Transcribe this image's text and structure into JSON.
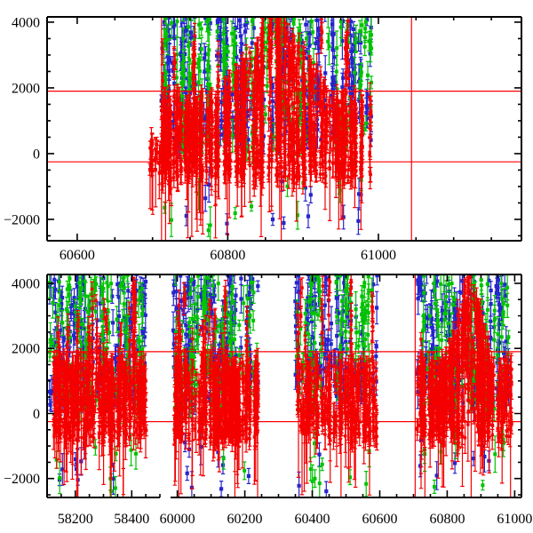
{
  "figure": {
    "background": "#ffffff",
    "frame_color": "#000000",
    "reference_line_color": "#ff0000"
  },
  "series": [
    {
      "name": "blue",
      "color": "#2525cd",
      "marker": "square",
      "marker_px": 4.2
    },
    {
      "name": "green",
      "color": "#00c300",
      "marker": "square",
      "marker_px": 4.0
    },
    {
      "name": "red",
      "color": "#f40000",
      "marker": "square",
      "marker_px": 3.4
    }
  ],
  "chart_data": [
    {
      "id": "top",
      "type": "scatter",
      "title": "",
      "xlabel": "",
      "ylabel": "",
      "xlim": [
        60560,
        61190
      ],
      "ylim": [
        -2650,
        4160
      ],
      "x_ticks": [
        {
          "v": 60600,
          "label": "60600"
        },
        {
          "v": 60800,
          "label": "60800"
        },
        {
          "v": 61000,
          "label": "61000"
        }
      ],
      "y_ticks": [
        {
          "v": -2000,
          "label": "−2000"
        },
        {
          "v": 0,
          "label": "0"
        },
        {
          "v": 2000,
          "label": "2000"
        },
        {
          "v": 4000,
          "label": "4000"
        }
      ],
      "x_minor_step": 50,
      "y_minor_step": 500,
      "x_major_step": 200,
      "y_major_step": 2000,
      "hlines": [
        1900,
        -250
      ],
      "vlines": [
        60712,
        60871,
        61044
      ],
      "grid": false,
      "legend": null,
      "clusters": [
        {
          "x0": 60696,
          "x1": 60714,
          "red": {
            "strips": 9,
            "ppsMin": 2,
            "ppsMax": 4,
            "yLow": -650,
            "yBase": 450,
            "highFrac": 0,
            "highTop": 0,
            "tailFrac": 0.15
          }
        },
        {
          "x0": 60712,
          "x1": 60990,
          "red": {
            "strips": 150,
            "ppsMin": 5,
            "ppsMax": 13,
            "yLow": -750,
            "yBase": 1650,
            "highFrac": 0.05,
            "highTop": 4300,
            "tailFrac": 0.09,
            "peak": {
              "center": 60865,
              "halfWidth": 78,
              "top": 4350
            }
          },
          "green": {
            "strips": 85,
            "ppsMin": 2,
            "ppsMax": 5,
            "yLo": 150,
            "yHi": 4300,
            "lowFrac": 0.05
          },
          "blue": {
            "strips": 105,
            "ppsMin": 2,
            "ppsMax": 6,
            "yLo": 250,
            "yHi": 4350,
            "lowFrac": 0.03
          }
        }
      ]
    },
    {
      "id": "bottom",
      "type": "scatter",
      "title": "",
      "xlabel": "",
      "ylabel": "",
      "x_segments": [
        {
          "v0": 58100,
          "v1": 58500
        },
        {
          "v0": 59980,
          "v1": 61020
        }
      ],
      "ylim": [
        -2580,
        4270
      ],
      "x_ticks": [
        {
          "v": 58200,
          "label": "58200"
        },
        {
          "v": 58400,
          "label": "58400"
        },
        {
          "v": 60000,
          "label": "60000"
        },
        {
          "v": 60200,
          "label": "60200"
        },
        {
          "v": 60400,
          "label": "60400"
        },
        {
          "v": 60600,
          "label": "60600"
        },
        {
          "v": 60800,
          "label": "60800"
        },
        {
          "v": 61000,
          "label": "61000"
        }
      ],
      "y_ticks": [
        {
          "v": -2000,
          "label": "−2000"
        },
        {
          "v": 0,
          "label": "0"
        },
        {
          "v": 2000,
          "label": "2000"
        },
        {
          "v": 4000,
          "label": "4000"
        }
      ],
      "x_minor_step": 50,
      "y_minor_step": 500,
      "x_major_step": 200,
      "y_major_step": 2000,
      "hlines": [
        1900,
        -250
      ],
      "vlines": [
        60705,
        60871
      ],
      "grid": false,
      "legend": null,
      "clusters": [
        {
          "x0": 58110,
          "x1": 58455,
          "red": {
            "strips": 95,
            "ppsMin": 4,
            "ppsMax": 10,
            "yLow": -800,
            "yBase": 1550,
            "highFrac": 0.18,
            "highTop": 4300,
            "tailFrac": 0.1
          },
          "green": {
            "strips": 60,
            "ppsMin": 2,
            "ppsMax": 4,
            "yLo": 100,
            "yHi": 4300,
            "lowFrac": 0.06
          },
          "blue": {
            "strips": 62,
            "ppsMin": 2,
            "ppsMax": 4,
            "yLo": 200,
            "yHi": 4300,
            "lowFrac": 0.04
          }
        },
        {
          "x0": 59990,
          "x1": 60240,
          "red": {
            "strips": 85,
            "ppsMin": 4,
            "ppsMax": 10,
            "yLow": -800,
            "yBase": 1600,
            "highFrac": 0.22,
            "highTop": 4300,
            "tailFrac": 0.1
          },
          "green": {
            "strips": 48,
            "ppsMin": 2,
            "ppsMax": 4,
            "yLo": 100,
            "yHi": 4300,
            "lowFrac": 0.05
          },
          "blue": {
            "strips": 55,
            "ppsMin": 2,
            "ppsMax": 5,
            "yLo": 200,
            "yHi": 4300,
            "lowFrac": 0.04
          }
        },
        {
          "x0": 60350,
          "x1": 60590,
          "red": {
            "strips": 70,
            "ppsMin": 4,
            "ppsMax": 9,
            "yLow": -750,
            "yBase": 1500,
            "highFrac": 0.15,
            "highTop": 4300,
            "tailFrac": 0.09
          },
          "green": {
            "strips": 40,
            "ppsMin": 2,
            "ppsMax": 4,
            "yLo": 150,
            "yHi": 4300,
            "lowFrac": 0.05
          },
          "blue": {
            "strips": 48,
            "ppsMin": 2,
            "ppsMax": 4,
            "yLo": 250,
            "yHi": 4300,
            "lowFrac": 0.03
          }
        },
        {
          "x0": 60712,
          "x1": 60990,
          "red": {
            "strips": 95,
            "ppsMin": 4,
            "ppsMax": 10,
            "yLow": -750,
            "yBase": 1500,
            "highFrac": 0.05,
            "highTop": 4300,
            "tailFrac": 0.09,
            "peak": {
              "center": 60865,
              "halfWidth": 70,
              "top": 4350
            }
          },
          "green": {
            "strips": 42,
            "ppsMin": 2,
            "ppsMax": 4,
            "yLo": 150,
            "yHi": 4300,
            "lowFrac": 0.05
          },
          "blue": {
            "strips": 55,
            "ppsMin": 2,
            "ppsMax": 5,
            "yLo": 250,
            "yHi": 4350,
            "lowFrac": 0.03
          }
        }
      ]
    }
  ]
}
